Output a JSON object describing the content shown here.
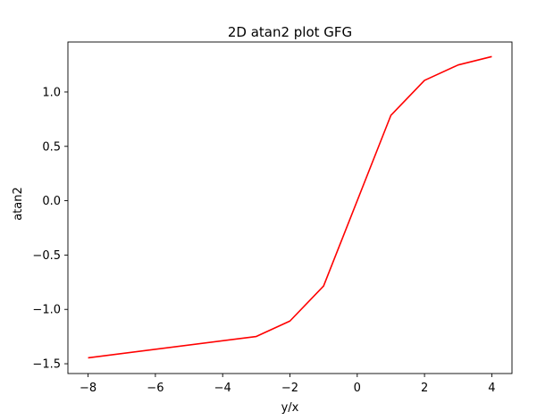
{
  "chart_data": {
    "type": "line",
    "title": "2D atan2 plot GFG",
    "xlabel": "y/x",
    "ylabel": "atan2",
    "xlim": [
      -8.6,
      4.6
    ],
    "ylim": [
      -1.59,
      1.46
    ],
    "xticks": [
      {
        "value": -8,
        "label": "−8"
      },
      {
        "value": -6,
        "label": "−6"
      },
      {
        "value": -4,
        "label": "−4"
      },
      {
        "value": -2,
        "label": "−2"
      },
      {
        "value": 0,
        "label": "0"
      },
      {
        "value": 2,
        "label": "2"
      },
      {
        "value": 4,
        "label": "4"
      }
    ],
    "yticks": [
      {
        "value": -1.5,
        "label": "−1.5"
      },
      {
        "value": -1.0,
        "label": "−1.0"
      },
      {
        "value": -0.5,
        "label": "−0.5"
      },
      {
        "value": 0.0,
        "label": "0.0"
      },
      {
        "value": 0.5,
        "label": "0.5"
      },
      {
        "value": 1.0,
        "label": "1.0"
      }
    ],
    "grid": false,
    "series": [
      {
        "color": "#ff0000",
        "x": [
          -8,
          -3,
          -2,
          -1,
          1,
          2,
          3,
          4
        ],
        "y": [
          -1.446,
          -1.249,
          -1.107,
          -0.785,
          0.785,
          1.107,
          1.249,
          1.326
        ]
      }
    ]
  }
}
